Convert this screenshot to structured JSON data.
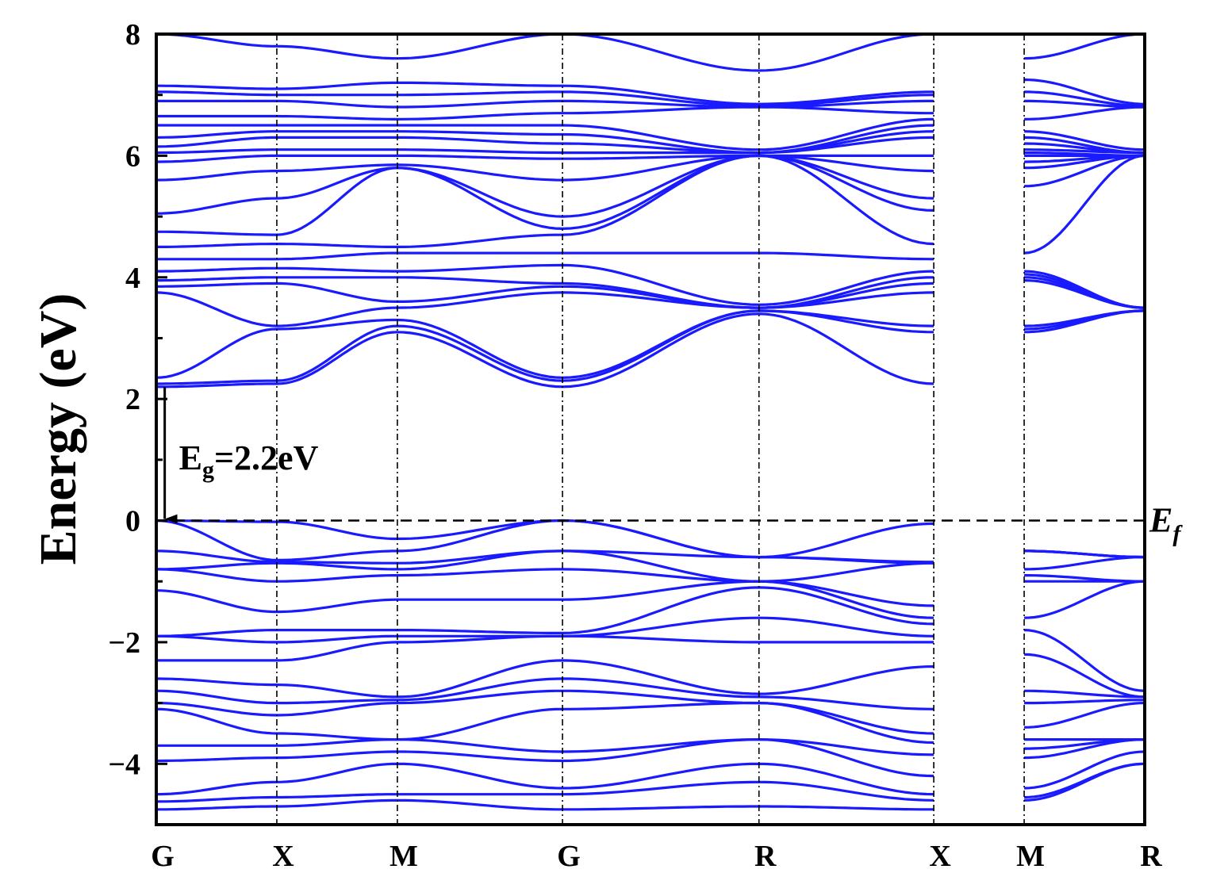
{
  "chart_data": {
    "type": "line",
    "ylabel": "Energy (eV)",
    "ylim": [
      -5,
      8
    ],
    "yticks": [
      -4,
      -2,
      0,
      2,
      4,
      6,
      8
    ],
    "ytick_labels": [
      "−4",
      "−2",
      "0",
      "2",
      "4",
      "6",
      "8"
    ],
    "kpoints": [
      {
        "label": "G",
        "k": 0
      },
      {
        "label": "X",
        "k": 1
      },
      {
        "label": "M",
        "k": 2
      },
      {
        "label": "G",
        "k": 3.37
      },
      {
        "label": "R",
        "k": 5
      },
      {
        "label": "X",
        "k": 6.45
      },
      {
        "label": "M",
        "k": 7.2
      },
      {
        "label": "R",
        "k": 8.2
      }
    ],
    "xlim": [
      0,
      8.2
    ],
    "gap_region": [
      6.45,
      7.2
    ],
    "fermi_level": {
      "value": 0,
      "label_main": "E",
      "label_sub": "f"
    },
    "band_gap": {
      "label_main": "E",
      "label_sub": "g",
      "label_rest": "=2.2eV",
      "k": 0.07,
      "from": 2.2,
      "to": 0
    },
    "line_color": "#1a1aff",
    "grid": false,
    "bands": [
      [
        -4.75,
        -4.7,
        -4.6,
        -4.75,
        -4.7,
        -4.75,
        -4.6,
        -4.0
      ],
      [
        -4.62,
        -4.55,
        -4.5,
        -4.5,
        -4.3,
        -4.6,
        -4.55,
        -4.0
      ],
      [
        -4.5,
        -4.3,
        -4.0,
        -4.4,
        -4.0,
        -4.5,
        -4.4,
        -3.8
      ],
      [
        -3.95,
        -3.9,
        -3.8,
        -3.95,
        -3.6,
        -4.2,
        -3.9,
        -3.6
      ],
      [
        -3.7,
        -3.7,
        -3.6,
        -3.8,
        -3.6,
        -3.85,
        -3.75,
        -3.6
      ],
      [
        -3.1,
        -3.5,
        -3.6,
        -3.1,
        -3.0,
        -3.65,
        -3.6,
        -3.6
      ],
      [
        -3.0,
        -3.2,
        -3.0,
        -2.8,
        -3.0,
        -3.5,
        -3.4,
        -3.0
      ],
      [
        -2.8,
        -3.0,
        -2.95,
        -2.6,
        -2.9,
        -3.1,
        -3.0,
        -2.95
      ],
      [
        -2.6,
        -2.7,
        -2.9,
        -2.3,
        -2.85,
        -2.4,
        -2.8,
        -2.9
      ],
      [
        -2.3,
        -2.3,
        -2.0,
        -1.9,
        -2.0,
        -2.0,
        -2.2,
        -2.9
      ],
      [
        -1.9,
        -2.0,
        -1.9,
        -1.9,
        -1.6,
        -1.9,
        -1.8,
        -2.8
      ],
      [
        -1.9,
        -1.8,
        -1.8,
        -1.85,
        -1.1,
        -1.7,
        -1.6,
        -1.0
      ],
      [
        -1.15,
        -1.5,
        -1.3,
        -1.3,
        -1.0,
        -1.6,
        -1.0,
        -1.0
      ],
      [
        -0.8,
        -1.0,
        -0.9,
        -0.8,
        -1.0,
        -1.4,
        -0.9,
        -1.0
      ],
      [
        -0.8,
        -0.7,
        -0.8,
        -0.5,
        -1.0,
        -0.7,
        -0.8,
        -0.6
      ],
      [
        -0.5,
        -0.68,
        -0.7,
        -0.5,
        -0.6,
        -0.7,
        -0.5,
        -0.6
      ],
      [
        0.0,
        -0.65,
        -0.5,
        0.0,
        -0.6,
        -0.68,
        -0.5,
        -0.6
      ],
      [
        0.0,
        -0.02,
        -0.3,
        0.0,
        -0.6,
        -0.05,
        -0.5,
        -0.6
      ],
      [
        2.2,
        2.25,
        3.1,
        2.2,
        3.4,
        2.25,
        3.1,
        3.45
      ],
      [
        2.25,
        2.3,
        3.2,
        2.3,
        3.45,
        3.1,
        3.15,
        3.45
      ],
      [
        2.35,
        3.15,
        3.3,
        2.35,
        3.45,
        3.2,
        3.2,
        3.45
      ],
      [
        3.75,
        3.2,
        3.5,
        3.75,
        3.5,
        3.75,
        3.95,
        3.5
      ],
      [
        3.85,
        3.9,
        3.6,
        3.85,
        3.5,
        3.9,
        4.0,
        3.5
      ],
      [
        3.95,
        4.0,
        4.0,
        3.9,
        3.5,
        4.0,
        4.05,
        3.5
      ],
      [
        4.1,
        4.15,
        4.1,
        4.2,
        3.55,
        4.1,
        4.1,
        3.5
      ],
      [
        4.3,
        4.3,
        4.4,
        4.4,
        4.4,
        4.3,
        4.4,
        6.0
      ],
      [
        4.5,
        4.55,
        4.5,
        4.7,
        6.0,
        4.55,
        5.5,
        6.0
      ],
      [
        4.75,
        4.7,
        5.8,
        4.8,
        6.0,
        5.1,
        5.8,
        6.0
      ],
      [
        5.05,
        5.3,
        5.8,
        5.0,
        6.0,
        5.3,
        5.9,
        6.0
      ],
      [
        5.6,
        5.75,
        5.85,
        5.6,
        6.0,
        5.75,
        6.0,
        6.0
      ],
      [
        5.9,
        6.0,
        6.0,
        5.95,
        6.0,
        6.0,
        6.05,
        6.0
      ],
      [
        6.05,
        6.1,
        6.1,
        6.05,
        6.05,
        6.3,
        6.1,
        6.05
      ],
      [
        6.15,
        6.3,
        6.3,
        6.2,
        6.05,
        6.4,
        6.2,
        6.05
      ],
      [
        6.3,
        6.4,
        6.4,
        6.35,
        6.05,
        6.5,
        6.3,
        6.05
      ],
      [
        6.5,
        6.5,
        6.5,
        6.5,
        6.1,
        6.6,
        6.4,
        6.1
      ],
      [
        6.65,
        6.65,
        6.6,
        6.7,
        6.8,
        6.7,
        6.6,
        6.8
      ],
      [
        6.9,
        6.9,
        6.8,
        6.9,
        6.8,
        6.9,
        6.9,
        6.8
      ],
      [
        7.05,
        7.0,
        7.0,
        7.05,
        6.82,
        7.0,
        7.05,
        6.82
      ],
      [
        7.15,
        7.1,
        7.2,
        7.15,
        6.85,
        7.05,
        7.25,
        6.85
      ],
      [
        8.0,
        7.8,
        7.6,
        8.0,
        7.4,
        8.0,
        7.6,
        8.0
      ]
    ]
  }
}
